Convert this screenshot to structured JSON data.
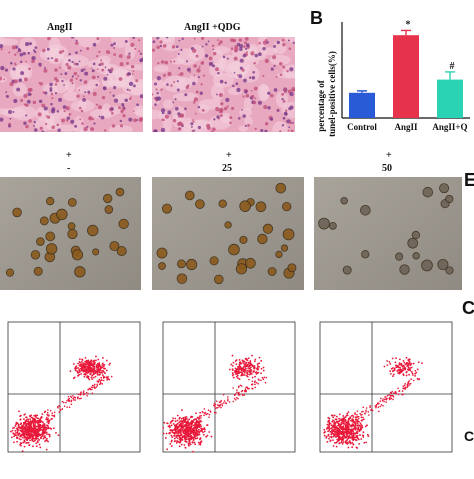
{
  "panelA": {
    "labels": [
      "AngII",
      "AngII +QDG"
    ]
  },
  "panelB": {
    "letter": "B",
    "ylabel_line1": "percentage of",
    "ylabel_line2": "tunel-positive cells(%)"
  },
  "chart_data": {
    "type": "bar",
    "categories": [
      "Control",
      "AngII",
      "AngII+Q"
    ],
    "values": [
      10.5,
      34.5,
      16.0
    ],
    "errors": [
      0.8,
      2.0,
      3.2
    ],
    "significance": [
      "",
      "*",
      "#"
    ],
    "ylabel": "percentage of tunel-positive cells(%)",
    "ylim": [
      0,
      40
    ],
    "colors": [
      "#2a5bd7",
      "#e6324b",
      "#2ad3b4"
    ]
  },
  "row2": {
    "top_marks": [
      "+",
      "+",
      "+"
    ],
    "bottom_marks": [
      "-",
      "25",
      "50"
    ],
    "side_letter": "E"
  },
  "row3": {
    "side_letter_top": "C",
    "side_letter_bottom": "C"
  },
  "colors": {
    "he_stain": "#e8a9c0",
    "micro_bg": "#8f8a82",
    "flow_dot": "#e8193a"
  }
}
